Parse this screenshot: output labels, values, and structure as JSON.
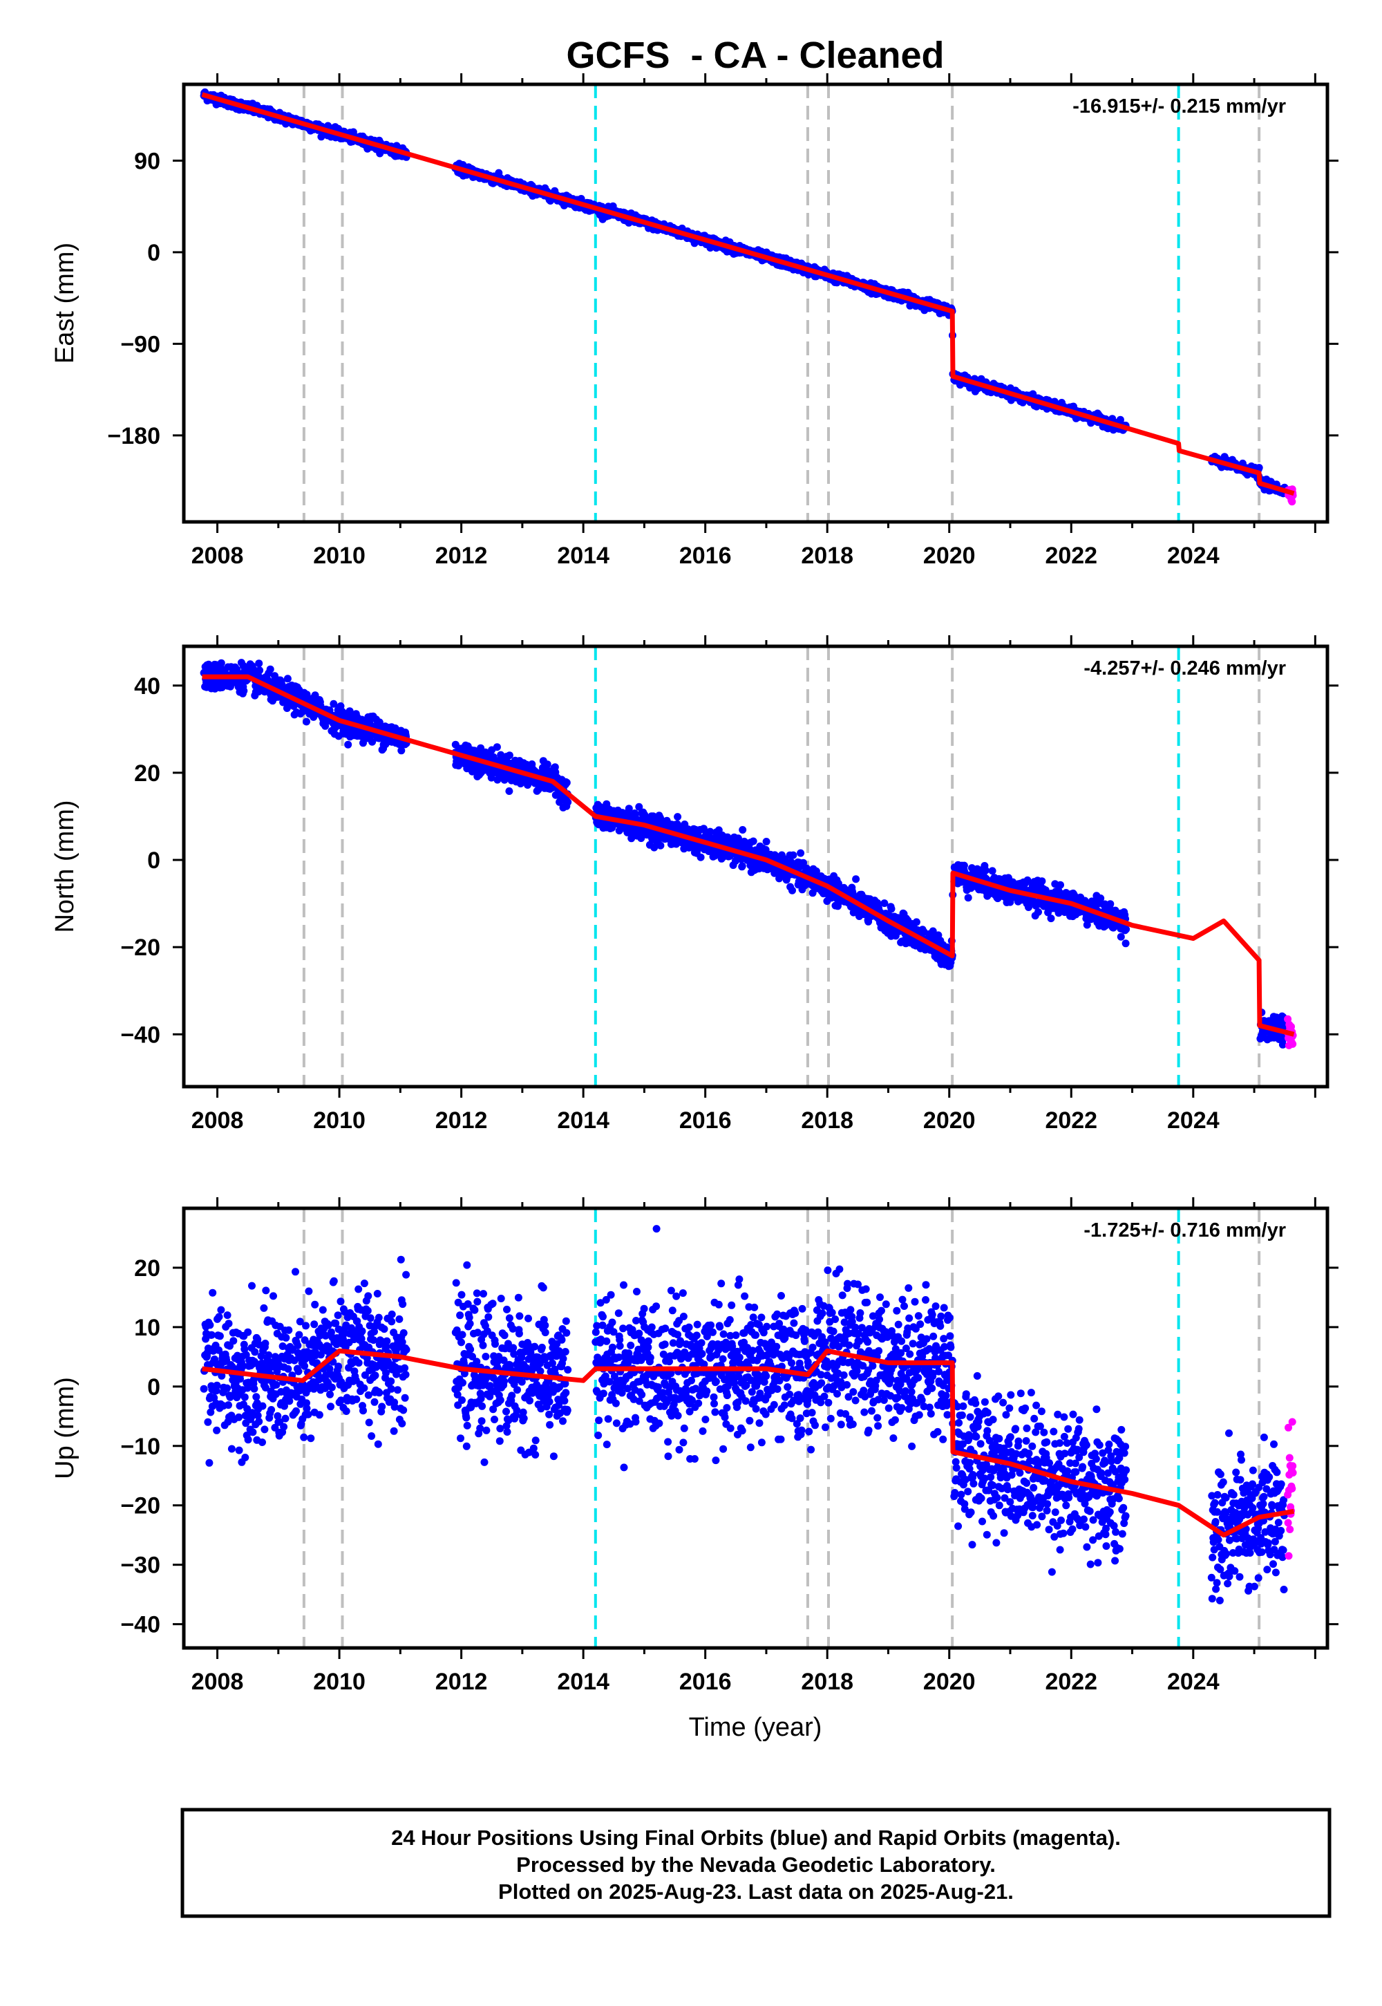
{
  "colors": {
    "final_orbits": "#0000ff",
    "rapid_orbits": "#ff00ff",
    "model_fit": "#ff0000",
    "event_gray": "#bfbfbf",
    "event_cyan": "#00e5ee"
  },
  "chart_data": {
    "type": "scatter",
    "title": "GCFS  - CA - Cleaned",
    "xlabel": "Time (year)",
    "xlim": [
      2007.45,
      2026.2
    ],
    "x_ticks": [
      "2008",
      "2010",
      "2012",
      "2014",
      "2016",
      "2018",
      "2020",
      "2022",
      "2024"
    ],
    "events_gray": [
      2009.42,
      2010.05,
      2017.68,
      2018.02,
      2020.05,
      2025.08
    ],
    "events_cyan": [
      2014.2,
      2023.76
    ],
    "panels": [
      {
        "component": "East",
        "ylabel": "East (mm)",
        "ylim": [
          -265,
          165
        ],
        "y_ticks": [
          90,
          0,
          -90,
          -180
        ],
        "y_tick_labels": [
          "90",
          "0",
          "−90",
          "−180"
        ],
        "rate": "-16.915+/- 0.215 mm/yr",
        "noise": 2.2,
        "final_segments": [
          {
            "from": 2007.78,
            "to": 2011.1
          },
          {
            "from": 2011.9,
            "to": 2020.06
          },
          {
            "from": 2020.08,
            "to": 2022.9
          },
          {
            "from": 2024.3,
            "to": 2025.5
          }
        ],
        "rapid_range": [
          2025.55,
          2025.64
        ],
        "fit": [
          [
            2007.75,
            155
          ],
          [
            2020.05,
            -58
          ],
          [
            2020.06,
            -122
          ],
          [
            2023.76,
            -188
          ],
          [
            2023.77,
            -195
          ],
          [
            2025.08,
            -217
          ],
          [
            2025.09,
            -227
          ],
          [
            2025.65,
            -237
          ]
        ]
      },
      {
        "component": "North",
        "ylabel": "North (mm)",
        "ylim": [
          -52,
          49
        ],
        "y_ticks": [
          40,
          20,
          0,
          -20,
          -40
        ],
        "y_tick_labels": [
          "40",
          "20",
          "0",
          "−20",
          "−40"
        ],
        "rate": "-4.257+/- 0.246 mm/yr",
        "noise": 1.5,
        "final_segments": [
          {
            "from": 2007.78,
            "to": 2011.1
          },
          {
            "from": 2011.9,
            "to": 2013.75
          },
          {
            "from": 2014.2,
            "to": 2020.06
          },
          {
            "from": 2020.08,
            "to": 2022.9
          },
          {
            "from": 2025.1,
            "to": 2025.5
          }
        ],
        "rapid_range": [
          2025.55,
          2025.64
        ],
        "fit": [
          [
            2007.75,
            42
          ],
          [
            2008.5,
            42
          ],
          [
            2009.4,
            36
          ],
          [
            2010.0,
            32
          ],
          [
            2010.5,
            30
          ],
          [
            2011.5,
            26
          ],
          [
            2012.5,
            22
          ],
          [
            2013.5,
            18
          ],
          [
            2014.2,
            10
          ],
          [
            2015.0,
            8
          ],
          [
            2016.0,
            4
          ],
          [
            2017.0,
            0
          ],
          [
            2018.0,
            -6
          ],
          [
            2019.0,
            -14
          ],
          [
            2020.05,
            -22
          ],
          [
            2020.06,
            -3
          ],
          [
            2021.0,
            -7
          ],
          [
            2022.0,
            -10
          ],
          [
            2023.0,
            -15
          ],
          [
            2024.0,
            -18
          ],
          [
            2024.5,
            -14
          ],
          [
            2025.08,
            -23
          ],
          [
            2025.09,
            -38
          ],
          [
            2025.65,
            -40
          ]
        ]
      },
      {
        "component": "Up",
        "ylabel": "Up (mm)",
        "ylim": [
          -44,
          30
        ],
        "y_ticks": [
          20,
          10,
          0,
          -10,
          -20,
          -30,
          -40
        ],
        "y_tick_labels": [
          "20",
          "10",
          "0",
          "−10",
          "−20",
          "−30",
          "−40"
        ],
        "rate": "-1.725+/- 0.716 mm/yr",
        "noise": 5.5,
        "final_segments": [
          {
            "from": 2007.78,
            "to": 2011.1
          },
          {
            "from": 2011.9,
            "to": 2013.75
          },
          {
            "from": 2014.2,
            "to": 2020.06
          },
          {
            "from": 2020.08,
            "to": 2022.9
          },
          {
            "from": 2024.3,
            "to": 2025.5
          }
        ],
        "rapid_range": [
          2025.55,
          2025.64
        ],
        "fit": [
          [
            2007.75,
            3
          ],
          [
            2009.4,
            1
          ],
          [
            2010.0,
            6
          ],
          [
            2011.0,
            5
          ],
          [
            2012.0,
            3
          ],
          [
            2013.0,
            2
          ],
          [
            2014.0,
            1
          ],
          [
            2014.2,
            3
          ],
          [
            2015.0,
            3
          ],
          [
            2016.0,
            3
          ],
          [
            2017.0,
            3
          ],
          [
            2017.68,
            2
          ],
          [
            2018.0,
            6
          ],
          [
            2019.0,
            4
          ],
          [
            2020.05,
            4
          ],
          [
            2020.06,
            -11
          ],
          [
            2021.0,
            -13
          ],
          [
            2022.0,
            -16
          ],
          [
            2023.0,
            -18
          ],
          [
            2023.76,
            -20
          ],
          [
            2024.5,
            -25
          ],
          [
            2025.08,
            -22
          ],
          [
            2025.65,
            -21
          ]
        ]
      }
    ]
  },
  "caption": {
    "line1": "24 Hour Positions Using Final Orbits (blue) and Rapid Orbits (magenta).",
    "line2": "Processed by the Nevada Geodetic Laboratory.",
    "line3": "Plotted on 2025-Aug-23. Last data on 2025-Aug-21."
  }
}
